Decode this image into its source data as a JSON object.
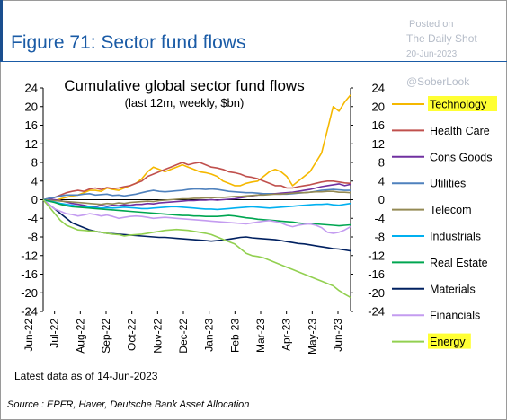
{
  "header": {
    "figure_title": "Figure 71: Sector fund flows",
    "watermark": {
      "posted": "Posted on",
      "site": "The Daily Shot",
      "date": "20-Jun-2023",
      "handle": "@SoberLook"
    }
  },
  "footer": {
    "note": "Latest data as of 14-Jun-2023",
    "source": "Source : EPFR, Haver, Deutsche Bank Asset Allocation"
  },
  "chart_data": {
    "type": "line",
    "title": "Cumulative global sector fund flows",
    "subtitle": "(last 12m, weekly, $bn)",
    "ylim": [
      -24,
      24
    ],
    "yticks": [
      "24",
      "20",
      "16",
      "12",
      "8",
      "4",
      "0",
      "-4",
      "-8",
      "-12",
      "-16",
      "-20",
      "-24"
    ],
    "xticks": [
      "Jun-22",
      "Jul-22",
      "Aug-22",
      "Sep-22",
      "Oct-22",
      "Nov-22",
      "Dec-22",
      "Jan-23",
      "Feb-23",
      "Mar-23",
      "Apr-23",
      "May-23",
      "Jun-23"
    ],
    "grid": false,
    "legend_position": "right",
    "x": [
      "Jun-22",
      "Jun-22",
      "Jun-22",
      "Jul-22",
      "Jul-22",
      "Jul-22",
      "Jul-22",
      "Aug-22",
      "Aug-22",
      "Aug-22",
      "Aug-22",
      "Aug-22",
      "Sep-22",
      "Sep-22",
      "Sep-22",
      "Sep-22",
      "Oct-22",
      "Oct-22",
      "Oct-22",
      "Oct-22",
      "Nov-22",
      "Nov-22",
      "Nov-22",
      "Nov-22",
      "Nov-22",
      "Dec-22",
      "Dec-22",
      "Dec-22",
      "Dec-22",
      "Jan-23",
      "Jan-23",
      "Jan-23",
      "Jan-23",
      "Feb-23",
      "Feb-23",
      "Feb-23",
      "Feb-23",
      "Mar-23",
      "Mar-23",
      "Mar-23",
      "Mar-23",
      "Mar-23",
      "Apr-23",
      "Apr-23",
      "Apr-23",
      "Apr-23",
      "May-23",
      "May-23",
      "May-23",
      "May-23",
      "May-23",
      "Jun-23",
      "Jun-23",
      "Jun-23"
    ],
    "series": [
      {
        "name": "Technology",
        "color": "#f5b800",
        "highlight": true,
        "values": [
          0,
          -0.3,
          -0.2,
          0.2,
          0.5,
          0.8,
          1,
          1.5,
          2,
          2,
          1.8,
          2.5,
          2.2,
          2,
          2.5,
          3,
          3.5,
          4.5,
          6,
          7,
          6.5,
          6,
          6.5,
          7,
          7.5,
          7,
          6.5,
          6,
          5.8,
          5.5,
          5,
          4,
          3.5,
          3,
          3,
          3.5,
          3.8,
          4,
          5,
          6,
          6.5,
          6,
          5,
          3,
          4,
          5,
          6,
          8,
          10,
          15,
          20,
          19,
          21,
          22.5
        ]
      },
      {
        "name": "Health Care",
        "color": "#c0504d",
        "highlight": false,
        "values": [
          0,
          0.3,
          0.5,
          1,
          1.5,
          1.8,
          2,
          1.8,
          2.3,
          2.5,
          2.2,
          2.6,
          2.4,
          2.5,
          2.8,
          3,
          3.5,
          4,
          5,
          5.5,
          6,
          6.5,
          7,
          7.5,
          8,
          7.5,
          7.8,
          8,
          7.5,
          7,
          6.8,
          6.5,
          6,
          5.8,
          5.5,
          5,
          4.8,
          4.5,
          4,
          3.5,
          3,
          3,
          2.5,
          2.5,
          2.8,
          3,
          3.2,
          3.5,
          3.8,
          4,
          4,
          3.8,
          3.6,
          3.5
        ]
      },
      {
        "name": "Cons Goods",
        "color": "#7030a0",
        "highlight": false,
        "values": [
          0,
          0.2,
          0,
          -0.2,
          -0.5,
          -0.8,
          -1,
          -1.2,
          -1.5,
          -1.5,
          -1.2,
          -1.4,
          -1.2,
          -1.3,
          -1.1,
          -1.2,
          -1,
          -1,
          -0.8,
          -0.9,
          -0.7,
          -0.6,
          -0.5,
          -0.4,
          -0.3,
          -0.2,
          -0.2,
          -0.1,
          -0.1,
          0,
          -0.1,
          0,
          0.1,
          0.2,
          0.4,
          0.6,
          0.8,
          1,
          1.2,
          1.3,
          1.3,
          1.4,
          1.5,
          1.6,
          1.8,
          2,
          2.2,
          2.5,
          2.8,
          3,
          3.2,
          3.4,
          3,
          3.3
        ]
      },
      {
        "name": "Utilities",
        "color": "#4f81bd",
        "highlight": false,
        "values": [
          0,
          0.3,
          0.5,
          0.8,
          1,
          1,
          1,
          1.2,
          1.3,
          1,
          1.1,
          1.2,
          0.9,
          1,
          0.8,
          1,
          1.2,
          1.5,
          1.8,
          2,
          1.8,
          1.7,
          1.8,
          1.9,
          2,
          2.2,
          2.3,
          2.3,
          2.2,
          2.3,
          2.2,
          2,
          1.8,
          1.7,
          1.6,
          1.5,
          1.5,
          1.4,
          1.3,
          1.3,
          1.2,
          1.2,
          1.2,
          1.3,
          1.4,
          1.5,
          1.6,
          1.8,
          2,
          2.1,
          2.2,
          2.1,
          2,
          2
        ]
      },
      {
        "name": "Telecom",
        "color": "#948a54",
        "highlight": false,
        "values": [
          0,
          -0.1,
          -0.2,
          -0.3,
          -0.4,
          -0.5,
          -0.6,
          -0.7,
          -0.8,
          -0.9,
          -1,
          -0.8,
          -0.9,
          -0.7,
          -0.8,
          -0.6,
          -0.5,
          -0.4,
          -0.3,
          -0.4,
          -0.2,
          -0.1,
          0,
          0.1,
          0.2,
          0.2,
          0.3,
          0.3,
          0.4,
          0.4,
          0.5,
          0.5,
          0.6,
          0.7,
          0.7,
          0.8,
          0.9,
          1,
          1,
          1.1,
          1.2,
          1.2,
          1.3,
          1.4,
          1.5,
          1.5,
          1.6,
          1.7,
          1.7,
          1.8,
          1.8,
          1.6,
          1.6,
          1.5
        ]
      },
      {
        "name": "Industrials",
        "color": "#00b0f0",
        "highlight": false,
        "values": [
          0,
          -0.3,
          -0.5,
          -0.8,
          -1,
          -1.2,
          -1.4,
          -1.5,
          -1.6,
          -1.7,
          -1.8,
          -1.7,
          -1.8,
          -1.7,
          -1.6,
          -1.7,
          -1.8,
          -1.9,
          -1.9,
          -1.8,
          -1.7,
          -1.6,
          -1.5,
          -1.5,
          -1.6,
          -1.7,
          -1.8,
          -1.9,
          -2,
          -2,
          -2.1,
          -2,
          -1.9,
          -1.8,
          -1.7,
          -1.6,
          -1.5,
          -1.6,
          -1.7,
          -1.8,
          -1.7,
          -1.6,
          -1.5,
          -1.4,
          -1.3,
          -1.2,
          -1.1,
          -1,
          -1,
          -0.9,
          -1.1,
          -1.2,
          -1,
          -0.8
        ]
      },
      {
        "name": "Real Estate",
        "color": "#00a651",
        "highlight": false,
        "values": [
          0,
          -0.3,
          -0.6,
          -1,
          -1.3,
          -1.5,
          -1.6,
          -1.7,
          -1.8,
          -1.9,
          -2,
          -2.1,
          -2.2,
          -2.3,
          -2.4,
          -2.5,
          -2.6,
          -2.7,
          -2.8,
          -2.9,
          -3,
          -3.1,
          -3.2,
          -3.3,
          -3.4,
          -3.4,
          -3.5,
          -3.5,
          -3.6,
          -3.6,
          -3.6,
          -3.5,
          -3.4,
          -3.5,
          -3.7,
          -3.9,
          -4,
          -4.2,
          -4.3,
          -4.4,
          -4.5,
          -4.6,
          -4.7,
          -4.8,
          -5,
          -5.1,
          -5.2,
          -5.2,
          -5.3,
          -5.4,
          -5.5,
          -5.6,
          -5.5,
          -5.4
        ]
      },
      {
        "name": "Materials",
        "color": "#002060",
        "highlight": false,
        "values": [
          0,
          -1,
          -2,
          -3,
          -4,
          -5,
          -5.5,
          -6,
          -6.5,
          -6.8,
          -7,
          -7.2,
          -7.3,
          -7.4,
          -7.5,
          -7.6,
          -7.7,
          -7.8,
          -7.9,
          -8,
          -8.1,
          -8.1,
          -8.2,
          -8.3,
          -8.4,
          -8.5,
          -8.6,
          -8.7,
          -8.8,
          -8.9,
          -8.8,
          -8.7,
          -8.5,
          -8.3,
          -8.1,
          -8,
          -8.2,
          -8.3,
          -8.4,
          -8.5,
          -8.6,
          -8.8,
          -9,
          -9.2,
          -9.4,
          -9.5,
          -9.7,
          -9.9,
          -10.1,
          -10.3,
          -10.5,
          -10.6,
          -10.8,
          -11
        ]
      },
      {
        "name": "Financials",
        "color": "#c49cf0",
        "highlight": false,
        "values": [
          0,
          -1,
          -2,
          -2.5,
          -3,
          -3.2,
          -3.5,
          -3.3,
          -3,
          -3.2,
          -3.5,
          -3.3,
          -3.6,
          -4,
          -3.8,
          -3.6,
          -3.5,
          -3.6,
          -3.8,
          -4,
          -3.9,
          -3.8,
          -3.9,
          -4,
          -4.1,
          -4.2,
          -4.3,
          -4.4,
          -4.5,
          -4.6,
          -4.7,
          -4.8,
          -4.9,
          -5,
          -5.1,
          -5.2,
          -5,
          -4.8,
          -4.6,
          -4.5,
          -4.7,
          -5,
          -5.5,
          -5.8,
          -5.5,
          -5.3,
          -5.2,
          -5.5,
          -6,
          -7,
          -7.2,
          -7,
          -6.5,
          -5.8
        ]
      },
      {
        "name": "Energy",
        "color": "#92d050",
        "highlight": true,
        "values": [
          0,
          -1.5,
          -3,
          -4.5,
          -5.5,
          -6,
          -6.5,
          -6.6,
          -6.7,
          -6.8,
          -7,
          -7.2,
          -7.4,
          -7.5,
          -7.8,
          -7.6,
          -7.5,
          -7.4,
          -7.2,
          -7,
          -6.8,
          -6.6,
          -6.5,
          -6.4,
          -6.5,
          -6.6,
          -6.8,
          -7,
          -7.2,
          -7.5,
          -8,
          -8.5,
          -9,
          -9.5,
          -10.5,
          -11.5,
          -12,
          -12.2,
          -12.5,
          -13,
          -13.5,
          -14,
          -14.5,
          -15,
          -15.5,
          -16,
          -16.5,
          -17,
          -17.5,
          -18,
          -18.5,
          -19.5,
          -20.3,
          -21
        ]
      }
    ]
  }
}
